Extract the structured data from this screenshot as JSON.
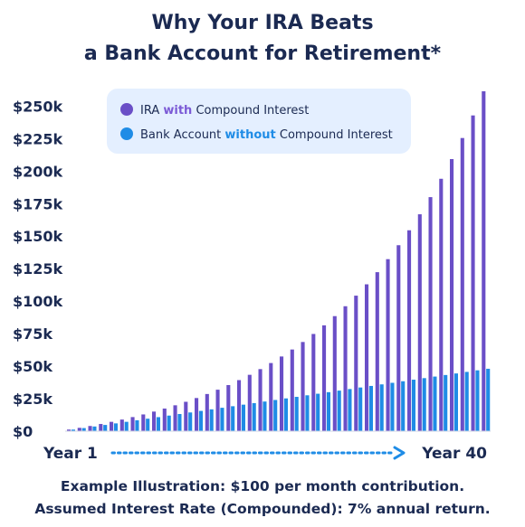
{
  "chart_data": {
    "type": "bar",
    "title": "Why Your IRA Beats a Bank Account for Retirement*",
    "title_lines": [
      "Why Your IRA Beats",
      "a Bank Account for Retirement*"
    ],
    "y_tick_labels": [
      "$0",
      "$25k",
      "$50k",
      "$75k",
      "$100k",
      "$125k",
      "$150k",
      "$175k",
      "$200k",
      "$225k",
      "$250k"
    ],
    "ylim": [
      0,
      260000
    ],
    "grid": false,
    "legend_position": "top-left",
    "x_start_label": "Year 1",
    "x_end_label": "Year 40",
    "categories": [
      1,
      2,
      3,
      4,
      5,
      6,
      7,
      8,
      9,
      10,
      11,
      12,
      13,
      14,
      15,
      16,
      17,
      18,
      19,
      20,
      21,
      22,
      23,
      24,
      25,
      26,
      27,
      28,
      29,
      30,
      31,
      32,
      33,
      34,
      35,
      36,
      37,
      38,
      39,
      40
    ],
    "series": [
      {
        "name": "IRA with Compound Interest",
        "name_parts": [
          {
            "text": "IRA ",
            "emphasis": false
          },
          {
            "text": "with",
            "emphasis": true
          },
          {
            "text": " Compound Interest",
            "emphasis": false
          }
        ],
        "color": "#6a4fc7",
        "emphasis_color": "#7b5ad6",
        "values": [
          1240,
          2570,
          4000,
          5540,
          7190,
          8950,
          10850,
          12890,
          15070,
          17410,
          19920,
          22610,
          25490,
          28590,
          31900,
          35460,
          39270,
          43350,
          47730,
          52410,
          57440,
          62820,
          68590,
          74770,
          81390,
          88480,
          96090,
          104230,
          112950,
          122290,
          132300,
          143030,
          154510,
          166810,
          180000,
          194120,
          209250,
          225460,
          242830,
          261430
        ]
      },
      {
        "name": "Bank Account without Compound Interest",
        "name_parts": [
          {
            "text": "Bank Account ",
            "emphasis": false
          },
          {
            "text": "without",
            "emphasis": true
          },
          {
            "text": " Compound Interest",
            "emphasis": false
          }
        ],
        "color": "#1f8ce6",
        "emphasis_color": "#1f8ce6",
        "values": [
          1200,
          2400,
          3600,
          4800,
          6000,
          7200,
          8400,
          9600,
          10800,
          12000,
          13200,
          14400,
          15600,
          16800,
          18000,
          19200,
          20400,
          21600,
          22800,
          24000,
          25200,
          26400,
          27600,
          28800,
          30000,
          31200,
          32400,
          33600,
          34800,
          36000,
          37200,
          38400,
          39600,
          40800,
          42000,
          43200,
          44400,
          45600,
          46800,
          48000
        ]
      }
    ],
    "footnotes": [
      "Example Illustration: $100 per month contribution.",
      "Assumed Interest Rate (Compounded): 7% annual return."
    ],
    "colors": {
      "text": "#1b2a52",
      "legend_bg": "#e4efff",
      "arrow": "#1f8ce6",
      "baseline": "#cfd6e6"
    }
  }
}
